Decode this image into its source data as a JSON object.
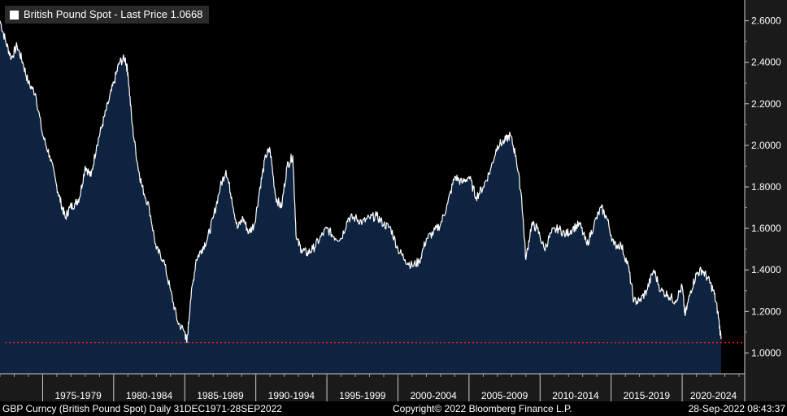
{
  "chart_data": {
    "type": "area",
    "title": "British Pound Spot - Last Price 1.0668",
    "series": [
      {
        "name": "British Pound Spot",
        "x": [
          1972.0,
          1972.4,
          1972.8,
          1973.2,
          1973.6,
          1974.0,
          1974.5,
          1975.0,
          1975.5,
          1976.0,
          1976.3,
          1976.6,
          1976.9,
          1977.3,
          1977.6,
          1978.0,
          1978.4,
          1978.8,
          1979.2,
          1979.6,
          1980.0,
          1980.4,
          1980.8,
          1981.0,
          1981.3,
          1981.7,
          1982.0,
          1982.5,
          1983.0,
          1983.5,
          1984.0,
          1984.5,
          1985.0,
          1985.15,
          1985.4,
          1985.8,
          1986.2,
          1986.6,
          1987.0,
          1987.5,
          1987.9,
          1988.3,
          1988.7,
          1989.1,
          1989.5,
          1989.9,
          1990.3,
          1990.7,
          1991.0,
          1991.4,
          1991.8,
          1992.2,
          1992.6,
          1992.85,
          1993.2,
          1993.6,
          1994.0,
          1994.5,
          1995.0,
          1995.5,
          1996.0,
          1996.5,
          1997.0,
          1997.5,
          1998.0,
          1998.5,
          1999.0,
          1999.5,
          2000.0,
          2000.5,
          2001.0,
          2001.5,
          2002.0,
          2002.5,
          2003.0,
          2003.5,
          2004.0,
          2004.5,
          2005.0,
          2005.5,
          2006.0,
          2006.5,
          2007.0,
          2007.5,
          2007.9,
          2008.3,
          2008.7,
          2009.0,
          2009.4,
          2009.8,
          2010.3,
          2010.8,
          2011.3,
          2011.8,
          2012.3,
          2012.8,
          2013.3,
          2013.8,
          2014.3,
          2014.7,
          2015.2,
          2015.7,
          2016.2,
          2016.6,
          2017.0,
          2017.5,
          2018.0,
          2018.5,
          2019.0,
          2019.5,
          2020.0,
          2020.2,
          2020.6,
          2021.0,
          2021.4,
          2021.8,
          2022.2,
          2022.5,
          2022.74
        ],
        "values": [
          2.6,
          2.5,
          2.42,
          2.48,
          2.4,
          2.3,
          2.25,
          2.05,
          1.95,
          1.8,
          1.72,
          1.65,
          1.7,
          1.72,
          1.75,
          1.9,
          1.85,
          2.0,
          2.1,
          2.2,
          2.3,
          2.4,
          2.42,
          2.35,
          2.1,
          1.9,
          1.8,
          1.7,
          1.5,
          1.45,
          1.3,
          1.15,
          1.1,
          1.05,
          1.25,
          1.45,
          1.5,
          1.55,
          1.65,
          1.8,
          1.88,
          1.75,
          1.6,
          1.65,
          1.58,
          1.62,
          1.8,
          1.95,
          1.98,
          1.75,
          1.7,
          1.9,
          1.95,
          1.55,
          1.5,
          1.48,
          1.5,
          1.55,
          1.6,
          1.56,
          1.55,
          1.65,
          1.65,
          1.63,
          1.65,
          1.66,
          1.62,
          1.6,
          1.5,
          1.45,
          1.42,
          1.44,
          1.55,
          1.58,
          1.62,
          1.72,
          1.85,
          1.82,
          1.85,
          1.75,
          1.8,
          1.88,
          2.0,
          2.02,
          2.05,
          1.95,
          1.75,
          1.45,
          1.62,
          1.6,
          1.5,
          1.58,
          1.6,
          1.57,
          1.6,
          1.62,
          1.52,
          1.62,
          1.7,
          1.65,
          1.52,
          1.52,
          1.42,
          1.25,
          1.25,
          1.3,
          1.4,
          1.3,
          1.28,
          1.25,
          1.32,
          1.18,
          1.3,
          1.38,
          1.4,
          1.36,
          1.3,
          1.2,
          1.0668
        ]
      }
    ],
    "reference_line": {
      "value": 1.05,
      "style": "dotted",
      "color": "#e02020"
    },
    "x_tick_labels": [
      "1975-1979",
      "1980-1984",
      "1985-1989",
      "1990-1994",
      "1995-1999",
      "2000-2004",
      "2005-2009",
      "2010-2014",
      "2015-2019",
      "2020-2024"
    ],
    "x_tick_ranges": [
      [
        1975,
        1980
      ],
      [
        1980,
        1985
      ],
      [
        1985,
        1990
      ],
      [
        1990,
        1995
      ],
      [
        1995,
        2000
      ],
      [
        2000,
        2005
      ],
      [
        2005,
        2010
      ],
      [
        2010,
        2015
      ],
      [
        2015,
        2020
      ],
      [
        2020,
        2025
      ]
    ],
    "xlim": [
      1972.0,
      2024.4
    ],
    "ylim": [
      0.9,
      2.7
    ],
    "y_ticks": [
      1.0,
      1.2,
      1.4,
      1.6,
      1.8,
      2.0,
      2.2,
      2.4,
      2.6
    ],
    "y_tick_labels": [
      "1.0000",
      "1.2000",
      "1.4000",
      "1.6000",
      "1.8000",
      "2.0000",
      "2.2000",
      "2.4000",
      "2.6000"
    ],
    "xlabel": "",
    "ylabel": "",
    "grid": false,
    "legend_position": "top-left"
  },
  "legend": {
    "label": "British Pound Spot - Last Price 1.0668"
  },
  "footer": {
    "security": "GBP Curncy (British Pound Spot)  Daily 31DEC1971-28SEP2022",
    "copyright": "Copyright© 2022 Bloomberg Finance L.P.",
    "timestamp": "28-Sep-2022 08:43:37"
  },
  "colors": {
    "background": "#000000",
    "area_fill": "#0e2340",
    "line": "#ffffff",
    "axis_panel": "#1a1a1a",
    "reference": "#e02020"
  }
}
